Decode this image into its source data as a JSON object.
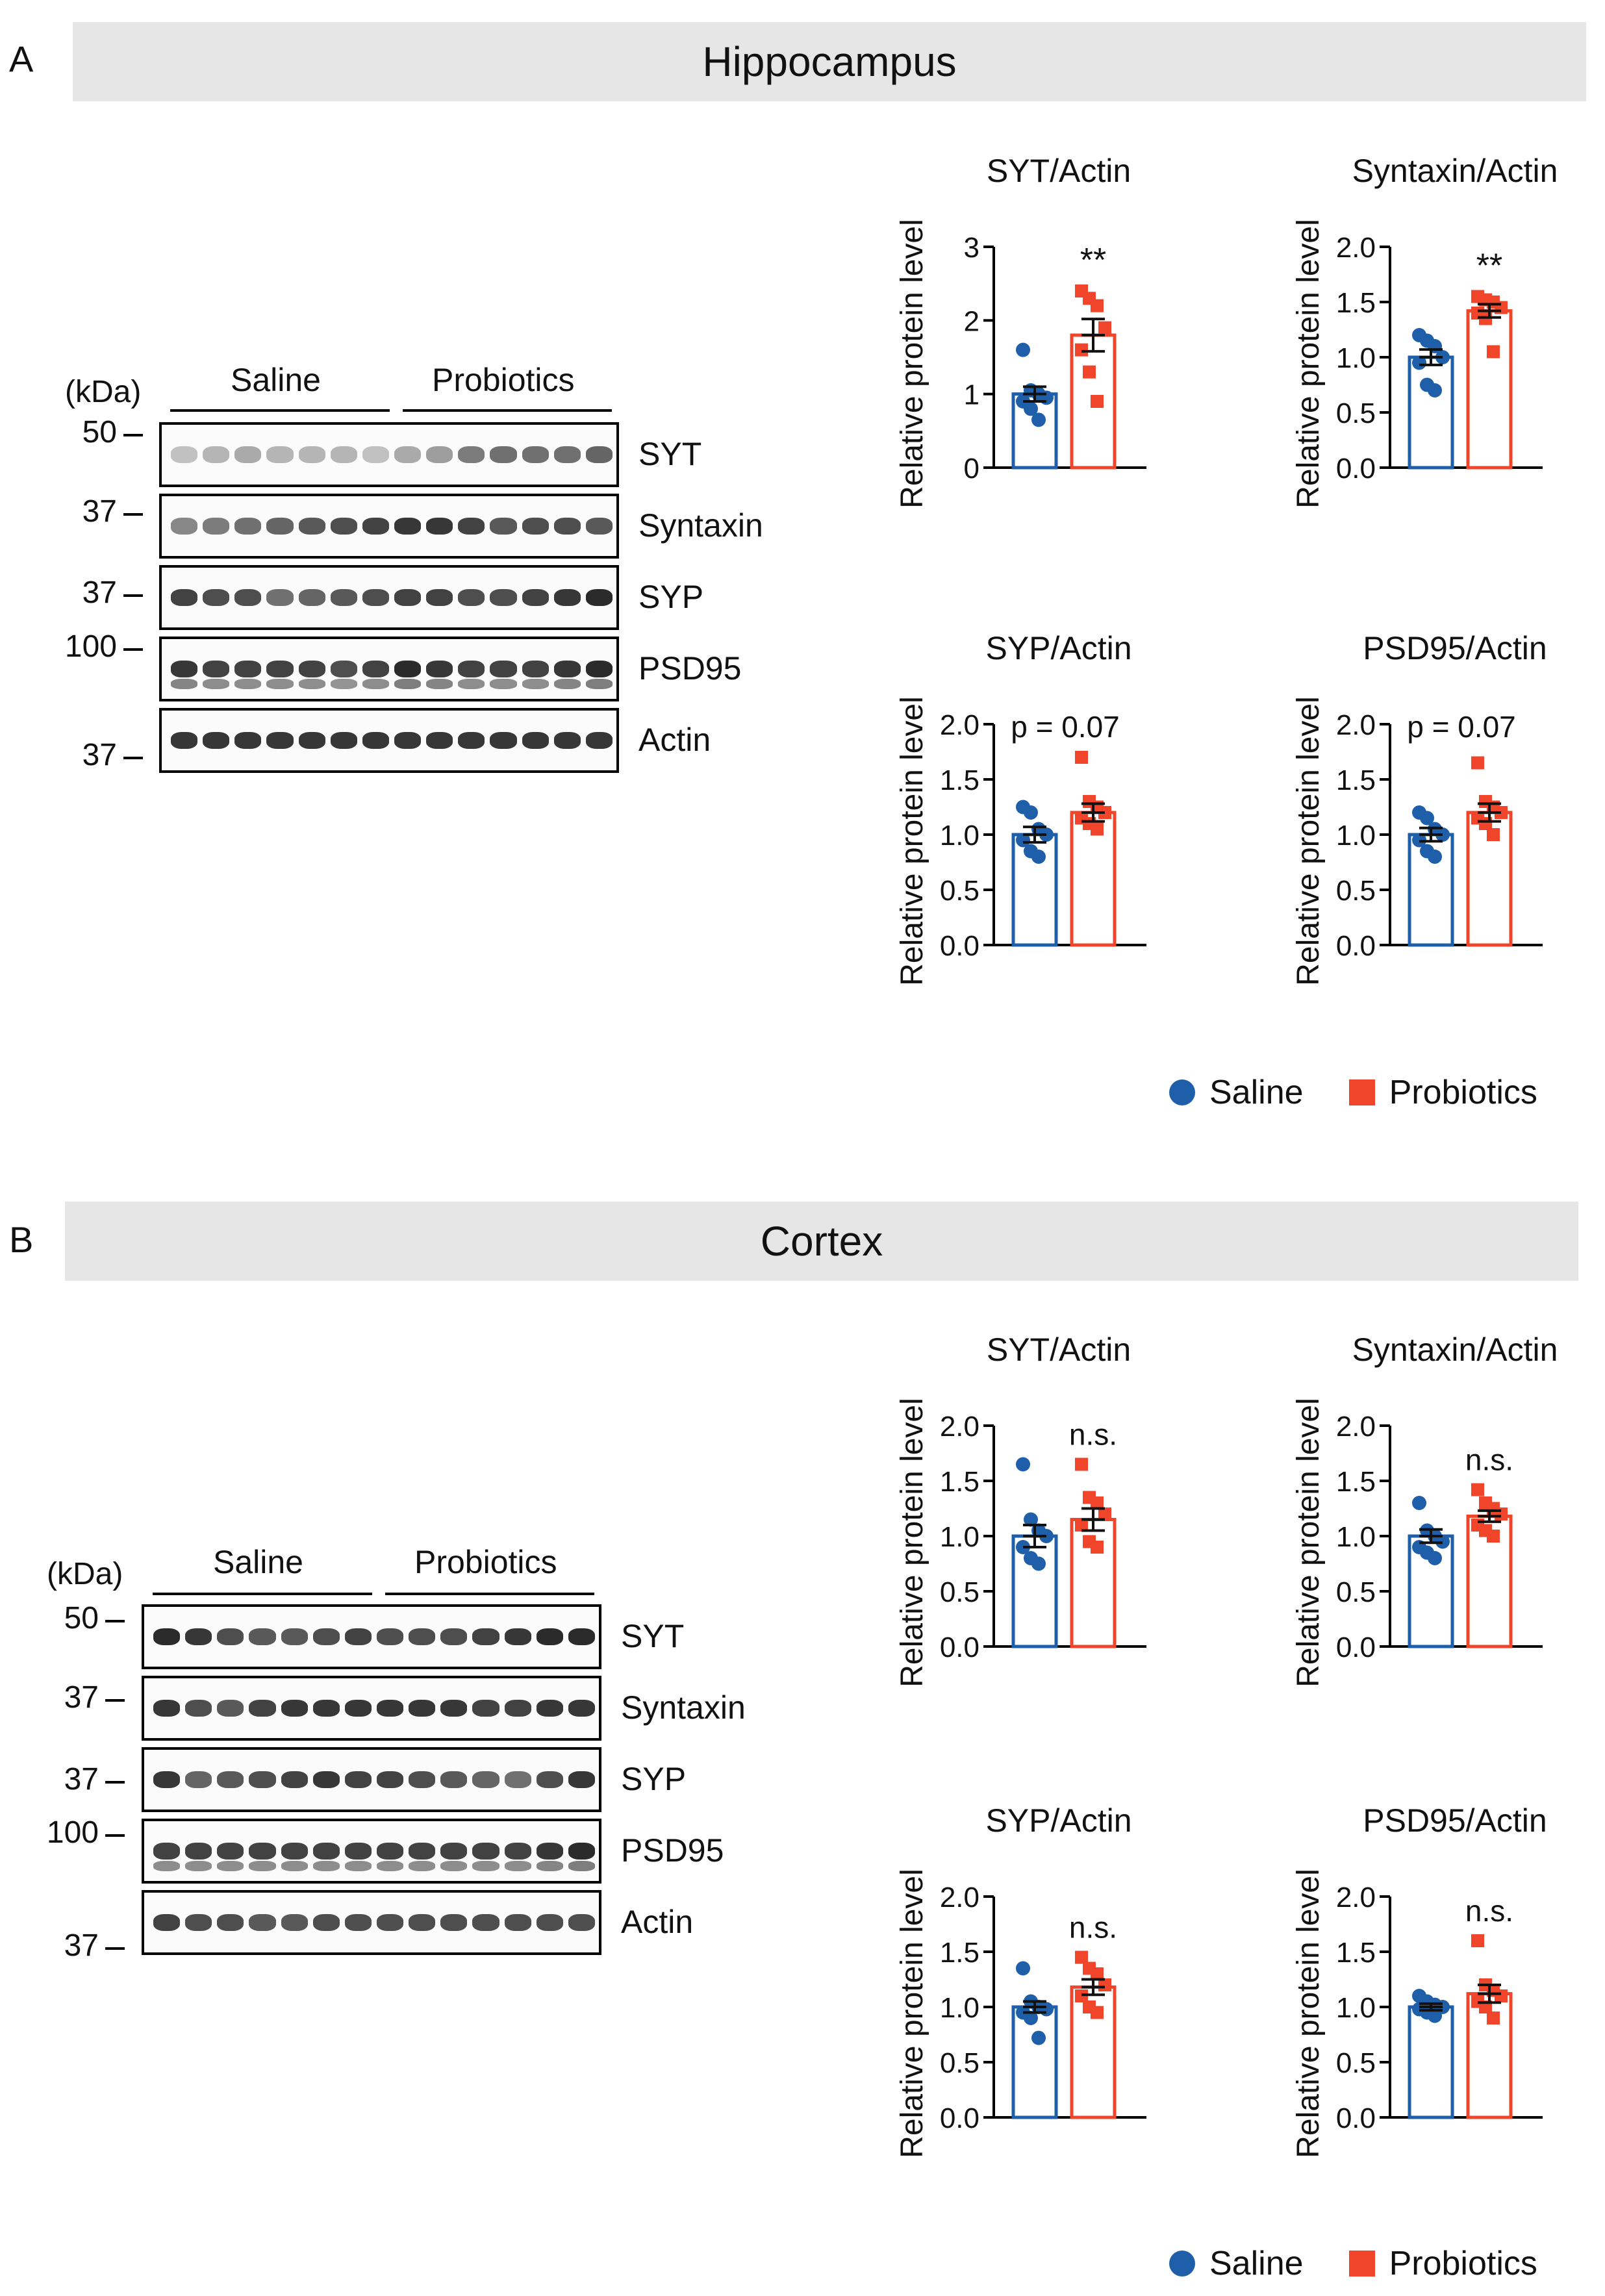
{
  "colors": {
    "saline": "#1f5ea8",
    "probiotics": "#f0452b",
    "banner": "#e6e6e6"
  },
  "panels": [
    {
      "letter": "A",
      "region": "Hippocampus",
      "blot": {
        "kda": "(kDa)",
        "groups": [
          "Saline",
          "Probiotics"
        ],
        "markers": [
          "50",
          "37",
          "37",
          "100",
          "37"
        ],
        "proteins": [
          "SYT",
          "Syntaxin",
          "SYP",
          "PSD95",
          "Actin"
        ]
      },
      "legend": {
        "saline": "Saline",
        "probiotics": "Probiotics"
      }
    },
    {
      "letter": "B",
      "region": "Cortex",
      "blot": {
        "kda": "(kDa)",
        "groups": [
          "Saline",
          "Probiotics"
        ],
        "markers": [
          "50",
          "37",
          "37",
          "100",
          "37"
        ],
        "proteins": [
          "SYT",
          "Syntaxin",
          "SYP",
          "PSD95",
          "Actin"
        ]
      },
      "legend": {
        "saline": "Saline",
        "probiotics": "Probiotics"
      }
    }
  ],
  "chart_data": [
    {
      "type": "bar",
      "panel": "A",
      "title": "SYT/Actin",
      "ylabel": "Relative protein level",
      "ylim": [
        0,
        3
      ],
      "yticks": [
        "0",
        "1",
        "2",
        "3"
      ],
      "categories": [
        "Saline",
        "Probiotics"
      ],
      "annotation": "**",
      "series": [
        {
          "name": "Saline",
          "mean": 1.0,
          "sem": 0.1,
          "points": [
            1.6,
            1.05,
            1.0,
            0.95,
            0.9,
            0.8,
            0.65
          ]
        },
        {
          "name": "Probiotics",
          "mean": 1.8,
          "sem": 0.22,
          "points": [
            2.4,
            2.3,
            2.2,
            1.9,
            1.6,
            1.3,
            0.9
          ]
        }
      ]
    },
    {
      "type": "bar",
      "panel": "A",
      "title": "Syntaxin/Actin",
      "ylabel": "Relative protein level",
      "ylim": [
        0,
        2
      ],
      "yticks": [
        "0.0",
        "0.5",
        "1.0",
        "1.5",
        "2.0"
      ],
      "categories": [
        "Saline",
        "Probiotics"
      ],
      "annotation": "**",
      "series": [
        {
          "name": "Saline",
          "mean": 1.0,
          "sem": 0.07,
          "points": [
            1.2,
            1.15,
            1.1,
            1.0,
            0.95,
            0.75,
            0.7
          ]
        },
        {
          "name": "Probiotics",
          "mean": 1.42,
          "sem": 0.06,
          "points": [
            1.55,
            1.52,
            1.5,
            1.45,
            1.4,
            1.35,
            1.05
          ]
        }
      ]
    },
    {
      "type": "bar",
      "panel": "A",
      "title": "SYP/Actin",
      "ylabel": "Relative protein level",
      "ylim": [
        0,
        2
      ],
      "yticks": [
        "0.0",
        "0.5",
        "1.0",
        "1.5",
        "2.0"
      ],
      "categories": [
        "Saline",
        "Probiotics"
      ],
      "annotation": "p = 0.07",
      "series": [
        {
          "name": "Saline",
          "mean": 1.0,
          "sem": 0.07,
          "points": [
            1.25,
            1.2,
            1.05,
            1.0,
            0.95,
            0.85,
            0.8
          ]
        },
        {
          "name": "Probiotics",
          "mean": 1.2,
          "sem": 0.08,
          "points": [
            1.7,
            1.3,
            1.25,
            1.2,
            1.15,
            1.1,
            1.05
          ]
        }
      ]
    },
    {
      "type": "bar",
      "panel": "A",
      "title": "PSD95/Actin",
      "ylabel": "Relative protein level",
      "ylim": [
        0,
        2
      ],
      "yticks": [
        "0.0",
        "0.5",
        "1.0",
        "1.5",
        "2.0"
      ],
      "categories": [
        "Saline",
        "Probiotics"
      ],
      "annotation": "p = 0.07",
      "series": [
        {
          "name": "Saline",
          "mean": 1.0,
          "sem": 0.06,
          "points": [
            1.2,
            1.15,
            1.05,
            1.0,
            0.95,
            0.85,
            0.8
          ]
        },
        {
          "name": "Probiotics",
          "mean": 1.2,
          "sem": 0.08,
          "points": [
            1.65,
            1.3,
            1.25,
            1.2,
            1.15,
            1.1,
            1.0
          ]
        }
      ]
    },
    {
      "type": "bar",
      "panel": "B",
      "title": "SYT/Actin",
      "ylabel": "Relative protein level",
      "ylim": [
        0,
        2
      ],
      "yticks": [
        "0.0",
        "0.5",
        "1.0",
        "1.5",
        "2.0"
      ],
      "categories": [
        "Saline",
        "Probiotics"
      ],
      "annotation": "n.s.",
      "series": [
        {
          "name": "Saline",
          "mean": 1.0,
          "sem": 0.1,
          "points": [
            1.65,
            1.15,
            1.05,
            1.0,
            0.9,
            0.8,
            0.75
          ]
        },
        {
          "name": "Probiotics",
          "mean": 1.15,
          "sem": 0.1,
          "points": [
            1.65,
            1.35,
            1.3,
            1.2,
            1.1,
            0.95,
            0.9
          ]
        }
      ]
    },
    {
      "type": "bar",
      "panel": "B",
      "title": "Syntaxin/Actin",
      "ylabel": "Relative protein level",
      "ylim": [
        0,
        2
      ],
      "yticks": [
        "0.0",
        "0.5",
        "1.0",
        "1.5",
        "2.0"
      ],
      "categories": [
        "Saline",
        "Probiotics"
      ],
      "annotation": "n.s.",
      "series": [
        {
          "name": "Saline",
          "mean": 1.0,
          "sem": 0.06,
          "points": [
            1.3,
            1.05,
            1.0,
            0.95,
            0.9,
            0.85,
            0.8
          ]
        },
        {
          "name": "Probiotics",
          "mean": 1.18,
          "sem": 0.05,
          "points": [
            1.42,
            1.3,
            1.25,
            1.2,
            1.1,
            1.05,
            1.0
          ]
        }
      ]
    },
    {
      "type": "bar",
      "panel": "B",
      "title": "SYP/Actin",
      "ylabel": "Relative protein level",
      "ylim": [
        0,
        2
      ],
      "yticks": [
        "0.0",
        "0.5",
        "1.0",
        "1.5",
        "2.0"
      ],
      "categories": [
        "Saline",
        "Probiotics"
      ],
      "annotation": "n.s.",
      "series": [
        {
          "name": "Saline",
          "mean": 1.0,
          "sem": 0.05,
          "points": [
            1.35,
            1.05,
            1.0,
            0.98,
            0.95,
            0.9,
            0.72
          ]
        },
        {
          "name": "Probiotics",
          "mean": 1.18,
          "sem": 0.07,
          "points": [
            1.45,
            1.35,
            1.3,
            1.2,
            1.1,
            1.0,
            0.95
          ]
        }
      ]
    },
    {
      "type": "bar",
      "panel": "B",
      "title": "PSD95/Actin",
      "ylabel": "Relative protein level",
      "ylim": [
        0,
        2
      ],
      "yticks": [
        "0.0",
        "0.5",
        "1.0",
        "1.5",
        "2.0"
      ],
      "categories": [
        "Saline",
        "Probiotics"
      ],
      "annotation": "n.s.",
      "series": [
        {
          "name": "Saline",
          "mean": 1.0,
          "sem": 0.03,
          "points": [
            1.1,
            1.05,
            1.02,
            1.0,
            0.98,
            0.95,
            0.92
          ]
        },
        {
          "name": "Probiotics",
          "mean": 1.12,
          "sem": 0.08,
          "points": [
            1.6,
            1.2,
            1.15,
            1.1,
            1.05,
            1.0,
            0.9
          ]
        }
      ]
    }
  ]
}
